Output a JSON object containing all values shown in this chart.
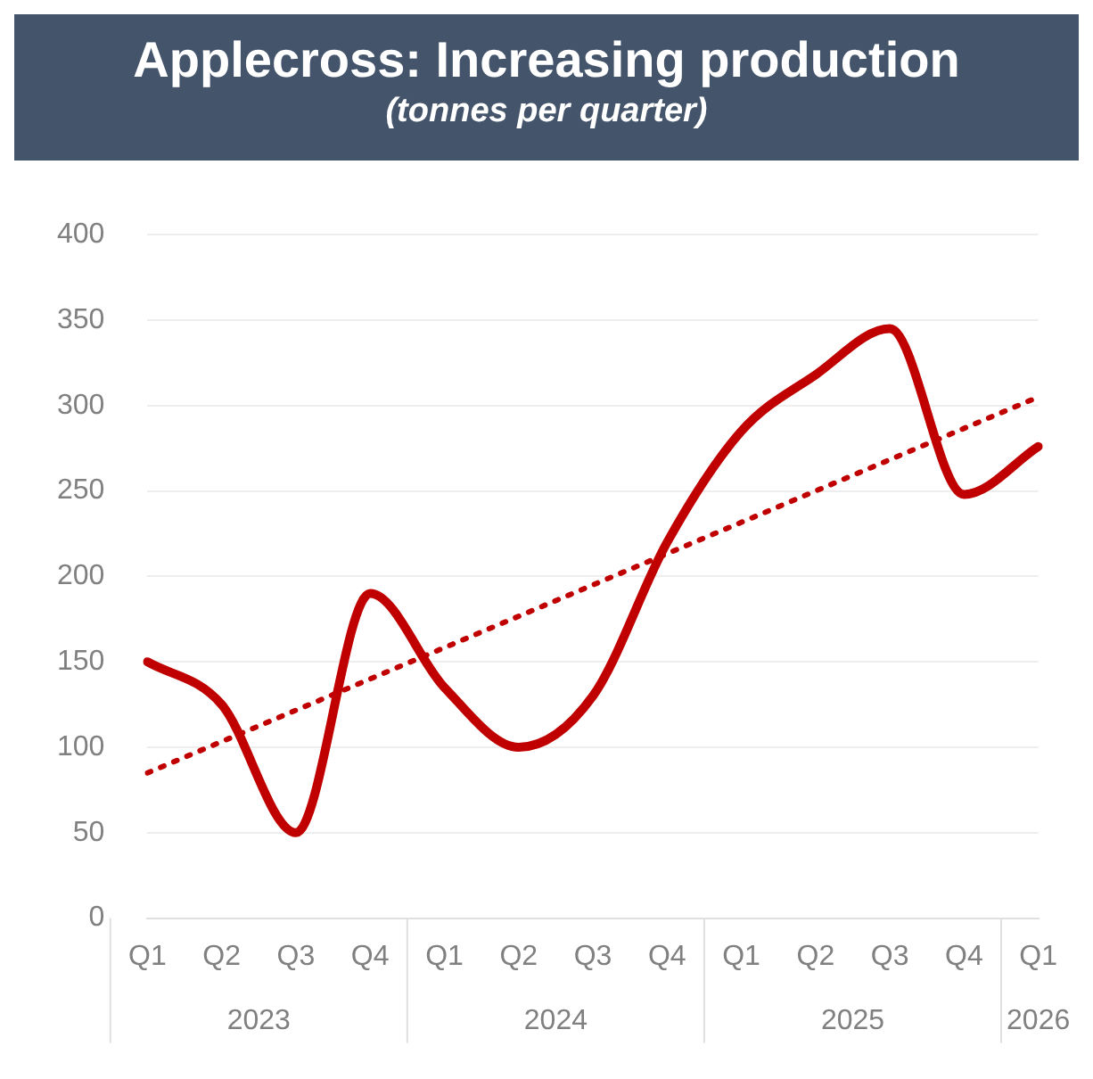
{
  "chart_data": {
    "type": "line",
    "title": "Applecross: Increasing production",
    "subtitle": "(tonnes per quarter)",
    "categories": [
      "Q1",
      "Q2",
      "Q3",
      "Q4",
      "Q1",
      "Q2",
      "Q3",
      "Q4",
      "Q1",
      "Q2",
      "Q3",
      "Q4",
      "Q1"
    ],
    "series": [
      {
        "color": "#c00000",
        "values": [
          150,
          125,
          50,
          190,
          135,
          100,
          130,
          220,
          285,
          318,
          345,
          248,
          276
        ],
        "line_style": "solid"
      },
      {
        "type": "line",
        "color": "#c00000",
        "values": [
          85,
          null,
          null,
          null,
          null,
          null,
          null,
          null,
          null,
          null,
          null,
          null,
          305
        ],
        "line_style": "dotted"
      }
    ],
    "annotations": [
      "2023",
      "2024",
      "2025",
      "2026"
    ],
    "ylim": [
      0,
      400
    ],
    "yticks": [
      0,
      50,
      100,
      150,
      200,
      250,
      300,
      350,
      400
    ],
    "grid": "y",
    "legend": false,
    "marker": "none"
  }
}
